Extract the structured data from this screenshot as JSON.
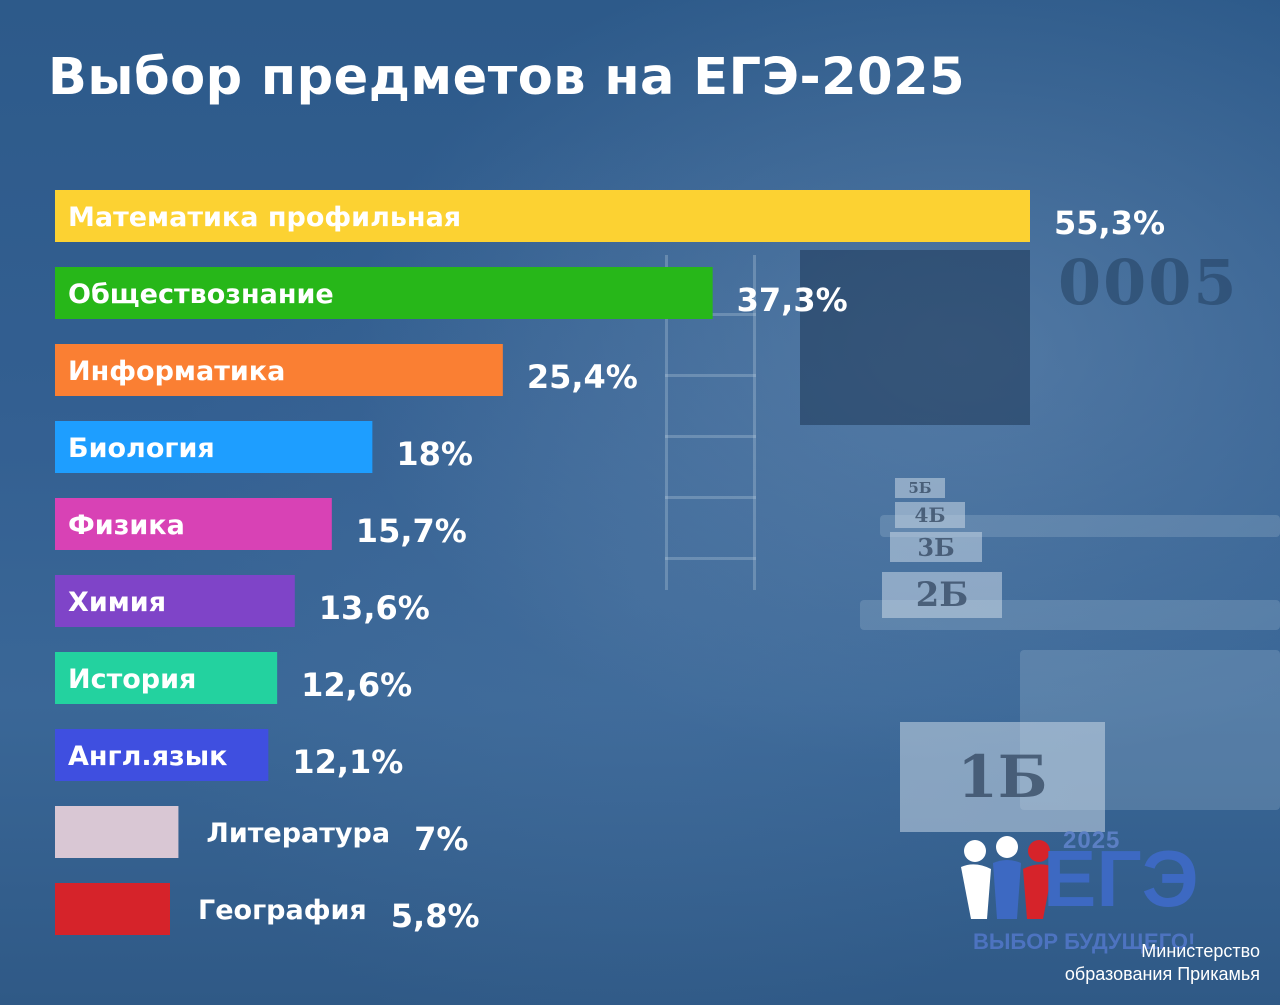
{
  "title": "Выбор предметов на ЕГЭ-2025",
  "chart_data": {
    "type": "bar",
    "orientation": "horizontal",
    "title": "Выбор предметов на ЕГЭ-2025",
    "categories": [
      "Математика профильная",
      "Обществознание",
      "Информатика",
      "Биология",
      "Физика",
      "Химия",
      "История",
      "Англ.язык",
      "Литература",
      "География"
    ],
    "values": [
      55.3,
      37.3,
      25.4,
      18,
      15.7,
      13.6,
      12.6,
      12.1,
      7,
      5.8
    ],
    "value_labels": [
      "55,3%",
      "37,3%",
      "25,4%",
      "18%",
      "15,7%",
      "13,6%",
      "12,6%",
      "12,1%",
      "7%",
      "5,8%"
    ],
    "colors": [
      "#fcd232",
      "#27b719",
      "#fa7f33",
      "#1e9eff",
      "#d842b5",
      "#7f44c8",
      "#23d29f",
      "#3f4fe0",
      "#d9c7d4",
      "#d6232a"
    ],
    "label_colors": [
      "#ffffff",
      "#ffffff",
      "#ffffff",
      "#ffffff",
      "#ffffff",
      "#ffffff",
      "#ffffff",
      "#ffffff",
      "#ffffff",
      "#ffffff"
    ],
    "label_inside": [
      true,
      true,
      true,
      true,
      true,
      true,
      true,
      true,
      false,
      false
    ],
    "grid": false,
    "legend": "none"
  },
  "logo": {
    "year": "2025",
    "text": "ЕГЭ",
    "slogan": "ВЫБОР БУДУЩЕГО!"
  },
  "ministry": {
    "line1": "Министерство",
    "line2": "образования Прикамья"
  },
  "background": {
    "board_number": "0005",
    "desk_tags": [
      "5Б",
      "4Б",
      "3Б",
      "2Б",
      "1Б"
    ]
  }
}
